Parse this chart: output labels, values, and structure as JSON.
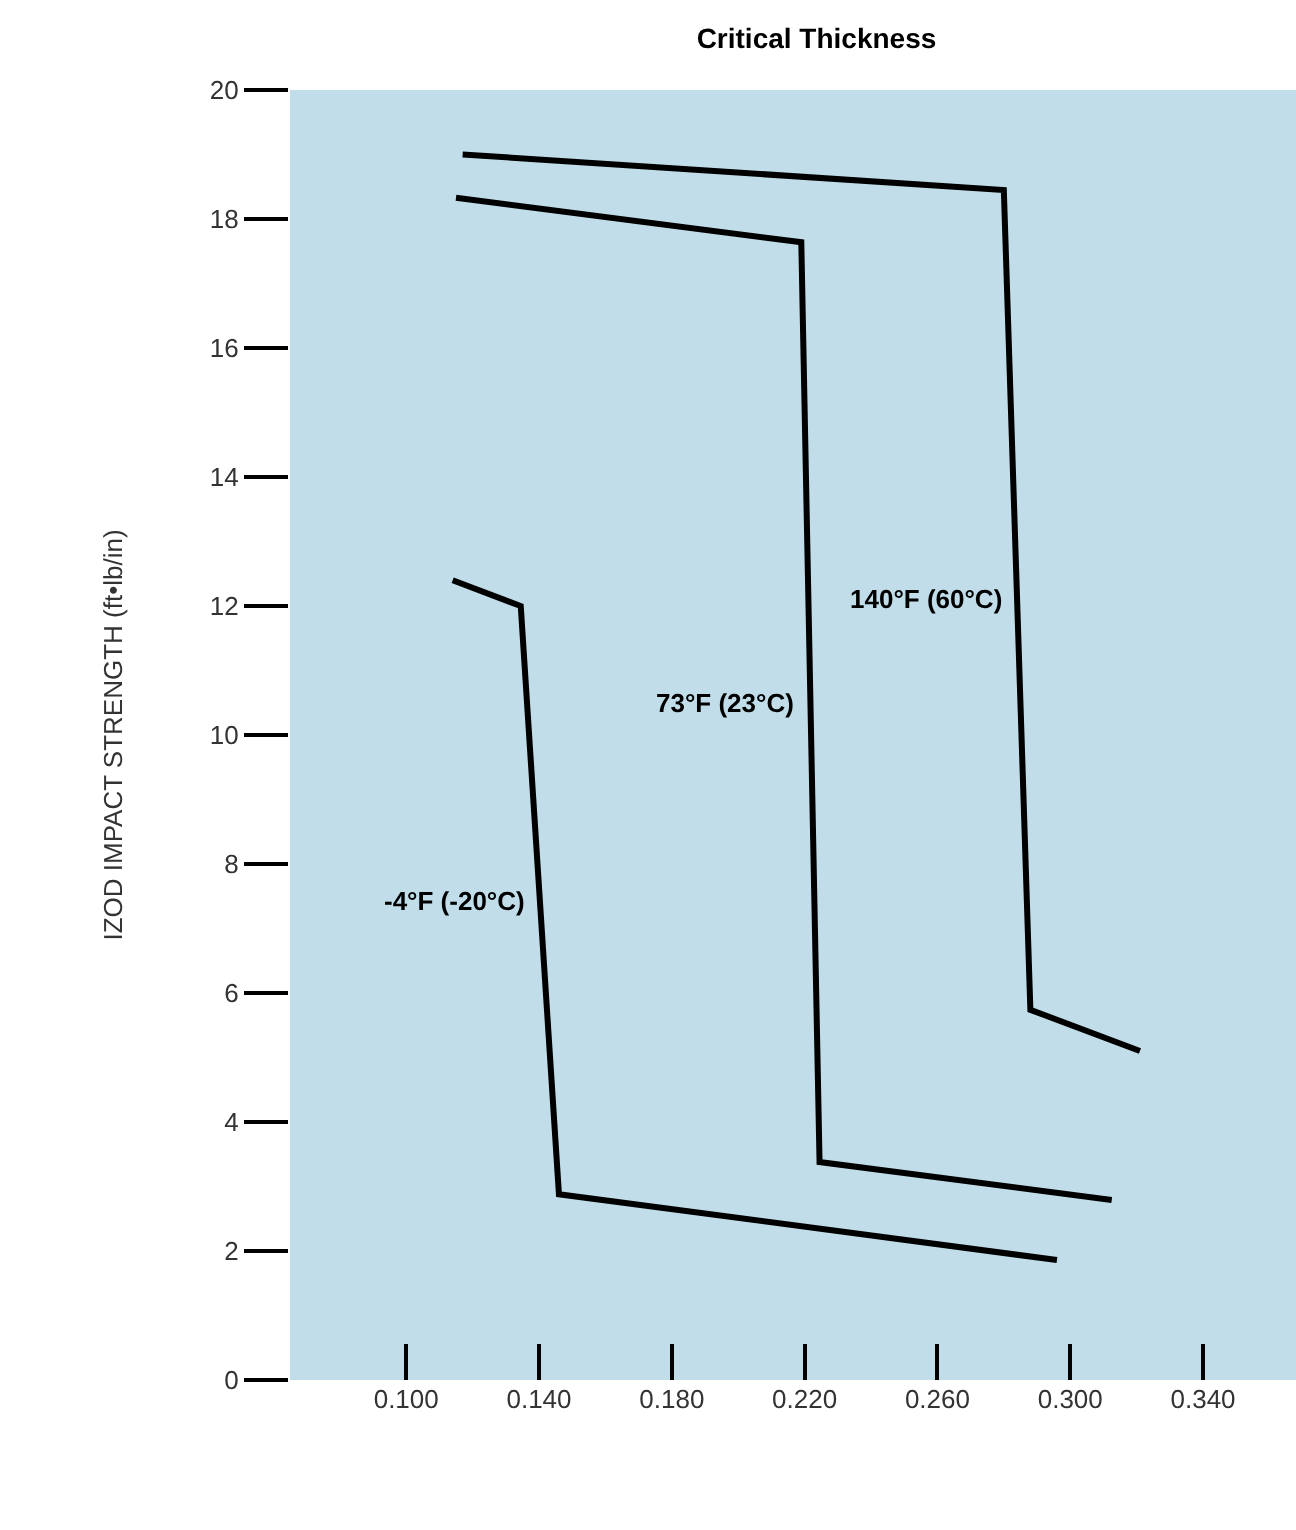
{
  "chart_data": {
    "type": "line",
    "title": "Critical Thickness",
    "ylabel": "IZOD IMPACT STRENGTH (ft•lb/in)",
    "series": [
      {
        "name": "140°F (60°C)",
        "color": "#000000",
        "x": [
          0.117,
          0.28,
          0.288,
          0.321
        ],
        "values": [
          19.0,
          18.45,
          5.74,
          5.1
        ]
      },
      {
        "name": "73°F (23°C)",
        "color": "#000000",
        "x": [
          0.115,
          0.219,
          0.2245,
          0.3125
        ],
        "values": [
          18.33,
          17.64,
          3.38,
          2.79
        ]
      },
      {
        "name": "-4°F (-20°C)",
        "color": "#000000",
        "x": [
          0.114,
          0.1345,
          0.146,
          0.296
        ],
        "values": [
          12.4,
          12.0,
          2.88,
          1.86
        ]
      }
    ],
    "xlim": [
      0.065,
      0.368
    ],
    "xticks": [
      {
        "value": 0.1,
        "label": "0.100"
      },
      {
        "value": 0.14,
        "label": "0.140"
      },
      {
        "value": 0.18,
        "label": "0.180"
      },
      {
        "value": 0.22,
        "label": "0.220"
      },
      {
        "value": 0.26,
        "label": "0.260"
      },
      {
        "value": 0.3,
        "label": "0.300"
      },
      {
        "value": 0.34,
        "label": "0.340"
      }
    ],
    "ylim": [
      0,
      20
    ],
    "yticks": [
      0,
      2,
      4,
      6,
      8,
      10,
      12,
      14,
      16,
      18,
      20
    ],
    "grid": false,
    "legend": false,
    "marker": "none",
    "line_style": "solid"
  }
}
